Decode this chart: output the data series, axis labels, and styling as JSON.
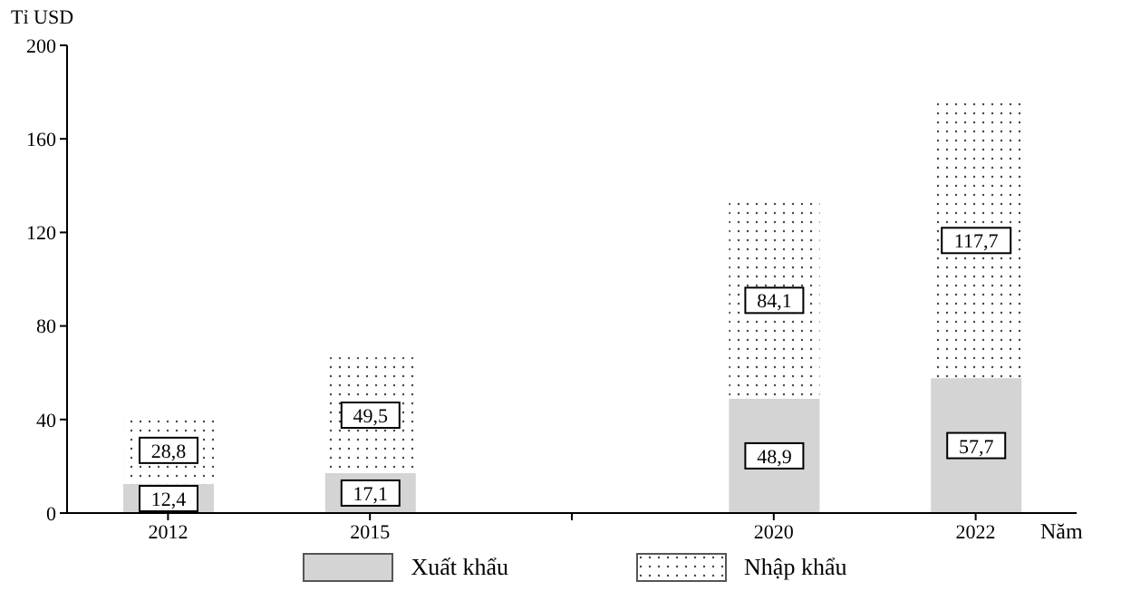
{
  "chart_data": {
    "type": "bar",
    "stacked": true,
    "categories": [
      "2012",
      "2015",
      null,
      "2020",
      "2022"
    ],
    "series": [
      {
        "name": "Xuất khẩu",
        "color": "#d4d4d4",
        "values": [
          12.4,
          17.1,
          null,
          48.9,
          57.7
        ],
        "value_labels": [
          "12,4",
          "17,1",
          null,
          "48,9",
          "57,7"
        ]
      },
      {
        "name": "Nhập khẩu",
        "color": "#ffffff",
        "values": [
          28.8,
          49.5,
          null,
          84.1,
          117.7
        ],
        "value_labels": [
          "28,8",
          "49,5",
          null,
          "84,1",
          "117,7"
        ]
      }
    ],
    "ylim": [
      0,
      200
    ],
    "yticks": [
      0,
      40,
      80,
      120,
      160,
      200
    ],
    "ylabel": "Tỉ USD",
    "xlabel": "Năm",
    "grid": false,
    "legend": "bottom"
  }
}
